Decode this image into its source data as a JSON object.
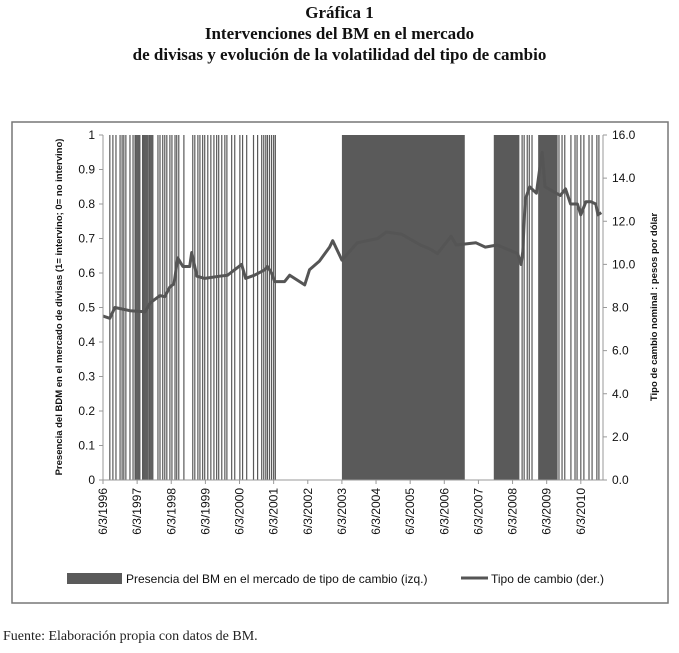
{
  "chart_data": {
    "type": "bar+line",
    "title_lines": [
      "Gráfica 1",
      "Intervenciones del BM en el mercado",
      "de divisas y evolución de la volatilidad del tipo de cambio"
    ],
    "ylabel_left": "Presencia del BDM en el mercado de divisas (1= intervino; 0= no intervino)",
    "ylabel_right": "Tipo de cambio nominal : pesos por dólar",
    "ylim_left": [
      0,
      1
    ],
    "ylim_right": [
      0,
      16
    ],
    "yticks_left": [
      "0",
      "0.1",
      "0.2",
      "0.3",
      "0.4",
      "0.5",
      "0.6",
      "0.7",
      "0.8",
      "0.9",
      "1"
    ],
    "yticks_right": [
      "0.0",
      "2.0",
      "4.0",
      "6.0",
      "8.0",
      "10.0",
      "12.0",
      "14.0",
      "16.0"
    ],
    "xticks": [
      "6/3/1996",
      "6/3/1997",
      "6/3/1998",
      "6/3/1999",
      "6/3/2000",
      "6/3/2001",
      "6/3/2002",
      "6/3/2003",
      "6/3/2004",
      "6/3/2005",
      "6/3/2006",
      "6/3/2007",
      "6/3/2008",
      "6/3/2009",
      "6/3/2010"
    ],
    "xlim_years": [
      1996,
      2010.65
    ],
    "grid": false,
    "legend_position": "bottom",
    "series": [
      {
        "name": "Presencia del BM en el mercado de tipo de cambio (izq.)",
        "kind": "intervention-bars",
        "color": "#5a5a5a",
        "value": 1,
        "intervention_dates_years": [
          1996.2,
          1996.29,
          1996.38,
          1996.5,
          1996.56,
          1996.61,
          1996.67,
          1996.79,
          1996.88,
          1996.94,
          1996.96,
          1996.99,
          1997.02,
          1997.05,
          1997.08,
          1997.16,
          1997.19,
          1997.22,
          1997.25,
          1997.28,
          1997.31,
          1997.35,
          1997.37,
          1997.4,
          1997.43,
          1997.46,
          1997.61,
          1997.67,
          1997.75,
          1997.81,
          1997.87,
          1997.96,
          1998.02,
          1998.11,
          1998.16,
          1998.22,
          1998.37,
          1998.63,
          1998.69,
          1998.78,
          1998.84,
          1998.92,
          1998.98,
          1999.07,
          1999.16,
          1999.25,
          1999.33,
          1999.39,
          1999.48,
          1999.57,
          1999.63,
          1999.77,
          1999.86,
          2000.01,
          2000.09,
          2000.21,
          2000.41,
          2000.53,
          2000.65,
          2000.71,
          2000.77,
          2000.82,
          2000.88,
          2000.94,
          2001.0,
          2001.05,
          2008.28,
          2008.34,
          2008.43,
          2008.49,
          2008.57,
          2009.36,
          2009.45,
          2009.53,
          2009.71,
          2009.83,
          2009.89,
          2010.0,
          2010.09,
          2010.24,
          2010.33,
          2010.47,
          2010.53
        ],
        "intervention_periods_years": [
          [
            2003.0,
            2006.6
          ],
          [
            2007.45,
            2008.2
          ],
          [
            2008.75,
            2009.32
          ]
        ]
      },
      {
        "name": "Tipo de cambio (der.)",
        "kind": "line",
        "color": "#555555",
        "points": [
          [
            1996.0,
            7.6
          ],
          [
            1996.2,
            7.5
          ],
          [
            1996.35,
            8.0
          ],
          [
            1996.79,
            7.85
          ],
          [
            1997.23,
            7.8
          ],
          [
            1997.37,
            8.2
          ],
          [
            1997.67,
            8.55
          ],
          [
            1997.81,
            8.5
          ],
          [
            1997.96,
            8.95
          ],
          [
            1998.08,
            9.1
          ],
          [
            1998.19,
            10.3
          ],
          [
            1998.34,
            9.9
          ],
          [
            1998.54,
            9.9
          ],
          [
            1998.6,
            10.55
          ],
          [
            1998.75,
            9.45
          ],
          [
            1998.98,
            9.35
          ],
          [
            1999.42,
            9.45
          ],
          [
            1999.65,
            9.5
          ],
          [
            2000.06,
            10.0
          ],
          [
            2000.18,
            9.35
          ],
          [
            2000.44,
            9.5
          ],
          [
            2000.74,
            9.75
          ],
          [
            2000.82,
            9.9
          ],
          [
            2000.94,
            9.6
          ],
          [
            2001.03,
            9.2
          ],
          [
            2001.32,
            9.2
          ],
          [
            2001.47,
            9.5
          ],
          [
            2001.91,
            9.05
          ],
          [
            2002.05,
            9.75
          ],
          [
            2002.34,
            10.15
          ],
          [
            2002.64,
            10.8
          ],
          [
            2002.73,
            11.1
          ],
          [
            2003.0,
            10.2
          ],
          [
            2003.45,
            11.0
          ],
          [
            2004.05,
            11.2
          ],
          [
            2004.3,
            11.5
          ],
          [
            2004.75,
            11.4
          ],
          [
            2005.3,
            10.9
          ],
          [
            2005.6,
            10.7
          ],
          [
            2005.8,
            10.5
          ],
          [
            2006.2,
            11.3
          ],
          [
            2006.35,
            10.9
          ],
          [
            2006.93,
            11.0
          ],
          [
            2007.2,
            10.8
          ],
          [
            2007.55,
            10.9
          ],
          [
            2008.15,
            10.5
          ],
          [
            2008.25,
            10.0
          ],
          [
            2008.3,
            10.6
          ],
          [
            2008.37,
            13.0
          ],
          [
            2008.5,
            13.6
          ],
          [
            2008.7,
            13.3
          ],
          [
            2008.8,
            14.5
          ],
          [
            2008.87,
            15.2
          ],
          [
            2008.95,
            13.6
          ],
          [
            2009.4,
            13.2
          ],
          [
            2009.55,
            13.5
          ],
          [
            2009.7,
            12.8
          ],
          [
            2009.9,
            12.8
          ],
          [
            2010.0,
            12.3
          ],
          [
            2010.15,
            12.9
          ],
          [
            2010.3,
            12.9
          ],
          [
            2010.44,
            12.8
          ],
          [
            2010.5,
            12.3
          ],
          [
            2010.6,
            12.4
          ]
        ]
      }
    ]
  },
  "footer": "Fuente: Elaboración propia con datos de BM."
}
